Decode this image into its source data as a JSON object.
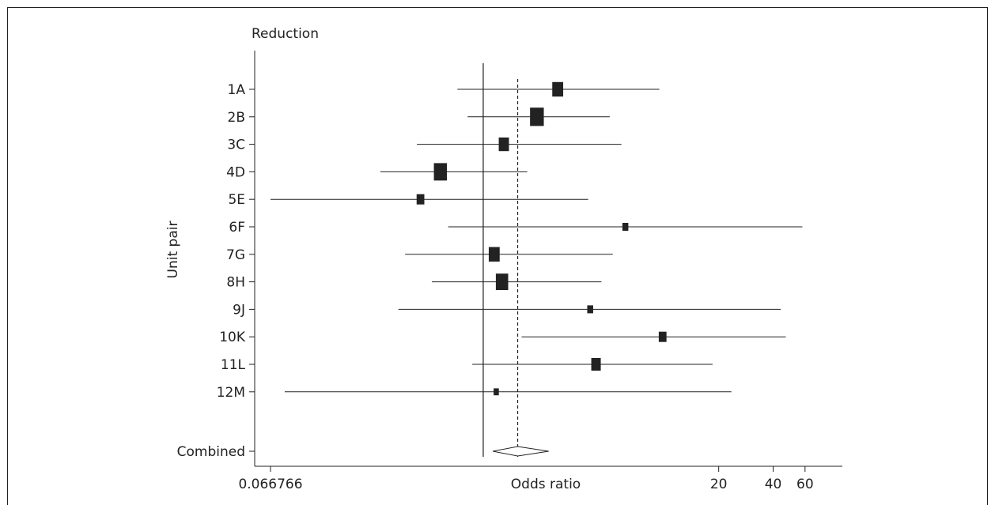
{
  "chart_data": {
    "type": "forest",
    "title": "Reduction",
    "ylabel": "Unit pair",
    "xlabel": "Odds ratio",
    "x_scale": "log",
    "xlim": [
      0.066766,
      75
    ],
    "x_ticks": [
      0.066766,
      20,
      40,
      60
    ],
    "x_tick_labels": [
      "0.066766",
      "20",
      "40",
      "60"
    ],
    "null_line": 1,
    "pooled_line": 1.55,
    "rows": [
      {
        "label": "1A",
        "or": 2.58,
        "lower": 0.72,
        "upper": 9.4,
        "weight": 1.2
      },
      {
        "label": "2B",
        "or": 1.98,
        "lower": 0.82,
        "upper": 5.0,
        "weight": 1.6
      },
      {
        "label": "3C",
        "or": 1.3,
        "lower": 0.43,
        "upper": 5.8,
        "weight": 1.1
      },
      {
        "label": "4D",
        "or": 0.58,
        "lower": 0.27,
        "upper": 1.75,
        "weight": 1.5
      },
      {
        "label": "5E",
        "or": 0.45,
        "lower": 0.066766,
        "upper": 3.8,
        "weight": 0.75
      },
      {
        "label": "6F",
        "or": 6.1,
        "lower": 0.64,
        "upper": 58,
        "weight": 0.5
      },
      {
        "label": "7G",
        "or": 1.15,
        "lower": 0.37,
        "upper": 5.2,
        "weight": 1.2
      },
      {
        "label": "8H",
        "or": 1.27,
        "lower": 0.52,
        "upper": 4.5,
        "weight": 1.4
      },
      {
        "label": "9J",
        "or": 3.9,
        "lower": 0.34,
        "upper": 44,
        "weight": 0.5
      },
      {
        "label": "10K",
        "or": 9.8,
        "lower": 1.63,
        "upper": 47,
        "weight": 0.75
      },
      {
        "label": "11L",
        "or": 4.2,
        "lower": 0.87,
        "upper": 18.5,
        "weight": 1.0
      },
      {
        "label": "12M",
        "or": 1.18,
        "lower": 0.08,
        "upper": 23.5,
        "weight": 0.4
      }
    ],
    "combined": {
      "label": "Combined",
      "or": 1.55,
      "lower": 1.13,
      "upper": 2.3
    }
  }
}
